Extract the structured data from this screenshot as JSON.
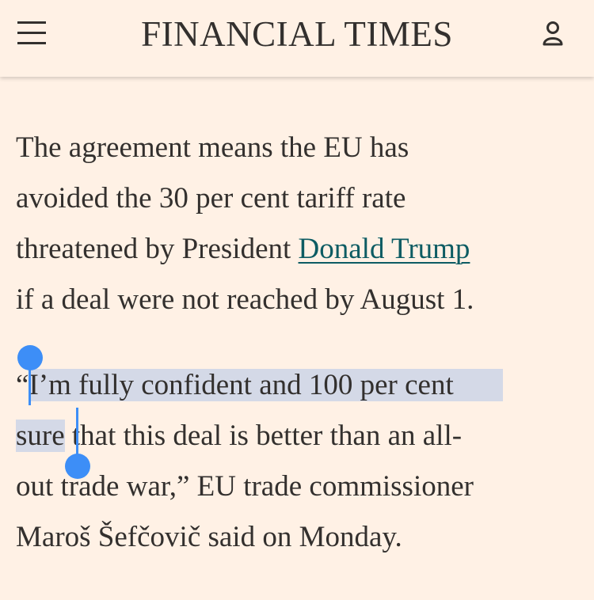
{
  "header": {
    "title": "FINANCIAL TIMES",
    "menu_icon": "hamburger-menu-icon",
    "account_icon": "user-account-icon"
  },
  "article": {
    "paragraph1": {
      "line1": "The agreement means the EU has",
      "line2": "avoided the 30 per cent tariff rate",
      "line3_before_link": "threatened by President ",
      "link_text": "Donald Trump",
      "line4": "if a deal were not reached by August 1."
    },
    "paragraph2": {
      "open_quote": "“",
      "selected_line1": "I’m fully confident and 100 per cent",
      "selected_line2": "sure",
      "line2_rest": " that this deal is better than an all-",
      "line3": "out trade war,” EU trade commissioner",
      "line4": "Maroš Šefčovič said on Monday."
    }
  },
  "colors": {
    "background": "#fff1e5",
    "text": "#33302e",
    "link": "#0d5c63",
    "selection": "#d4d9e7",
    "selection_handle": "#3d8ef7"
  }
}
